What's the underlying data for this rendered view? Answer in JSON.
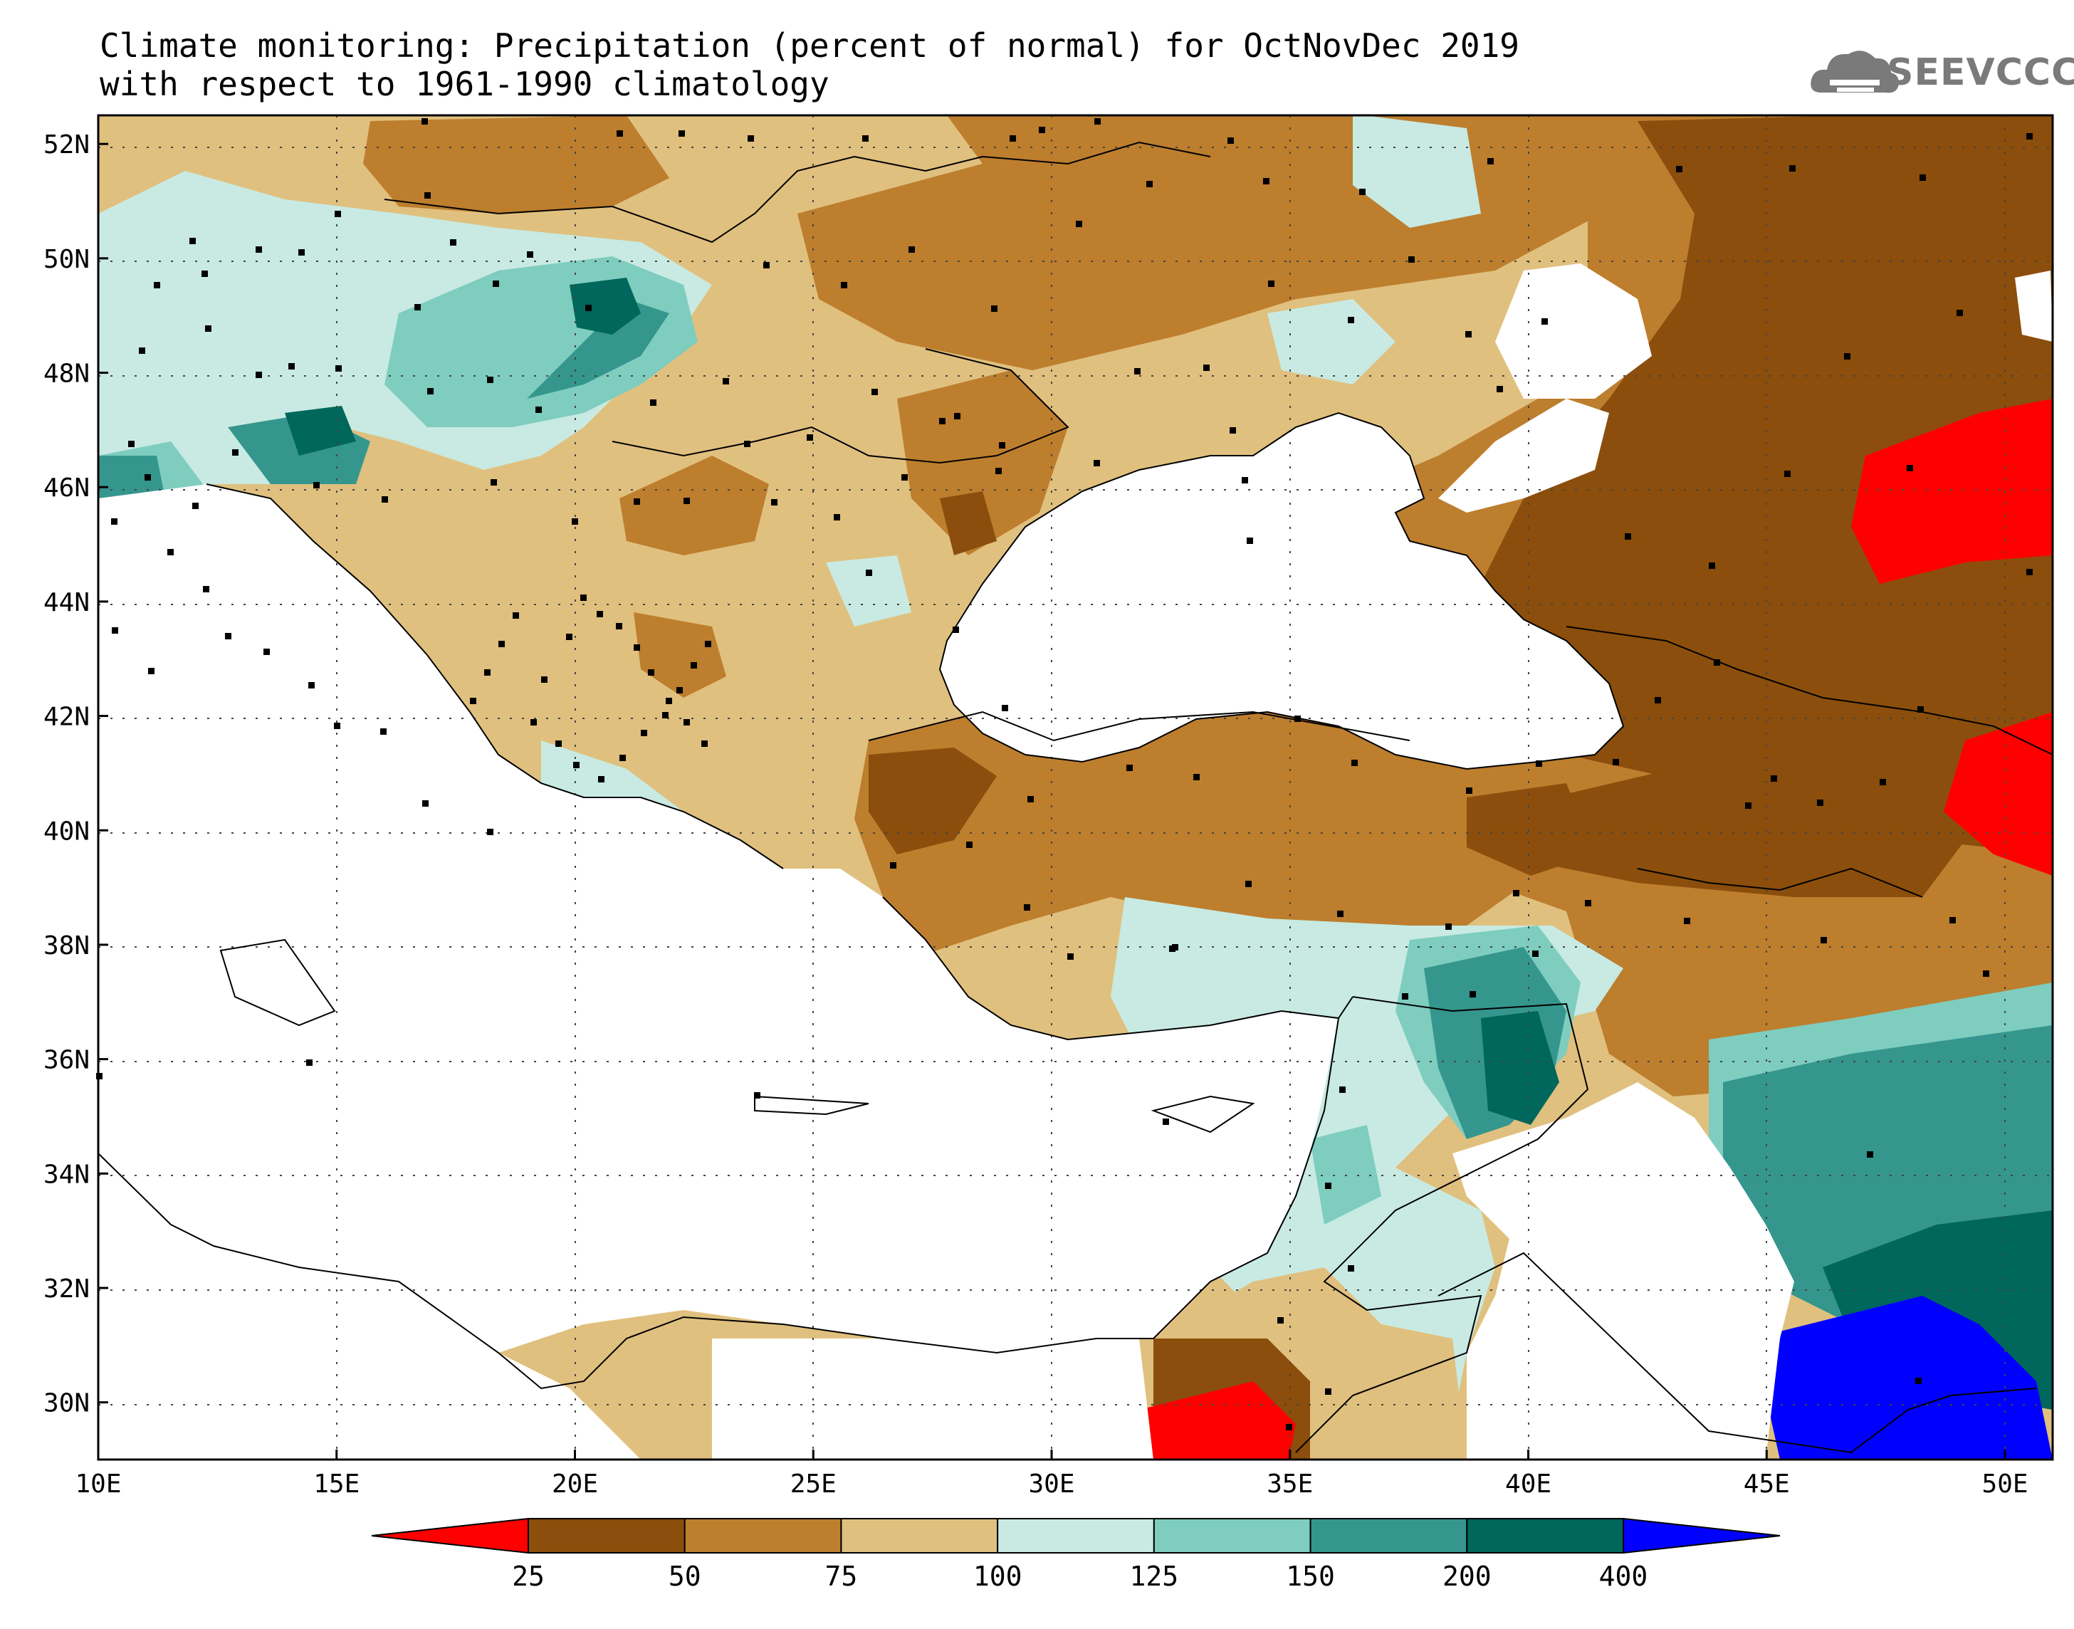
{
  "title": {
    "line1": "Climate monitoring: Precipitation (percent of normal) for OctNovDec 2019",
    "line2": "with respect to 1961-1990 climatology"
  },
  "logo": {
    "name": "seevccc-logo",
    "text": "SEEVCCC",
    "icon": "cloud-icon"
  },
  "map": {
    "lon_range": [
      10,
      51
    ],
    "lat_range": [
      29,
      52.5
    ],
    "lat_ticks": [
      {
        "value": 52,
        "label": "52N"
      },
      {
        "value": 50,
        "label": "50N"
      },
      {
        "value": 48,
        "label": "48N"
      },
      {
        "value": 46,
        "label": "46N"
      },
      {
        "value": 44,
        "label": "44N"
      },
      {
        "value": 42,
        "label": "42N"
      },
      {
        "value": 40,
        "label": "40N"
      },
      {
        "value": 38,
        "label": "38N"
      },
      {
        "value": 36,
        "label": "36N"
      },
      {
        "value": 34,
        "label": "34N"
      },
      {
        "value": 32,
        "label": "32N"
      },
      {
        "value": 30,
        "label": "30N"
      }
    ],
    "lon_ticks": [
      {
        "value": 10,
        "label": "10E"
      },
      {
        "value": 15,
        "label": "15E"
      },
      {
        "value": 20,
        "label": "20E"
      },
      {
        "value": 25,
        "label": "25E"
      },
      {
        "value": 30,
        "label": "30E"
      },
      {
        "value": 35,
        "label": "35E"
      },
      {
        "value": 40,
        "label": "40E"
      },
      {
        "value": 45,
        "label": "45E"
      },
      {
        "value": 50,
        "label": "50E"
      }
    ],
    "grid": true
  },
  "colorbar": {
    "labels": [
      "25",
      "50",
      "75",
      "100",
      "125",
      "150",
      "200",
      "400"
    ],
    "colors": [
      "#ff0000",
      "#8b4e0c",
      "#bd7e2e",
      "#e0c07e",
      "#c8eae2",
      "#7ecdbf",
      "#35968e",
      "#00675c",
      "#0000ff"
    ]
  }
}
